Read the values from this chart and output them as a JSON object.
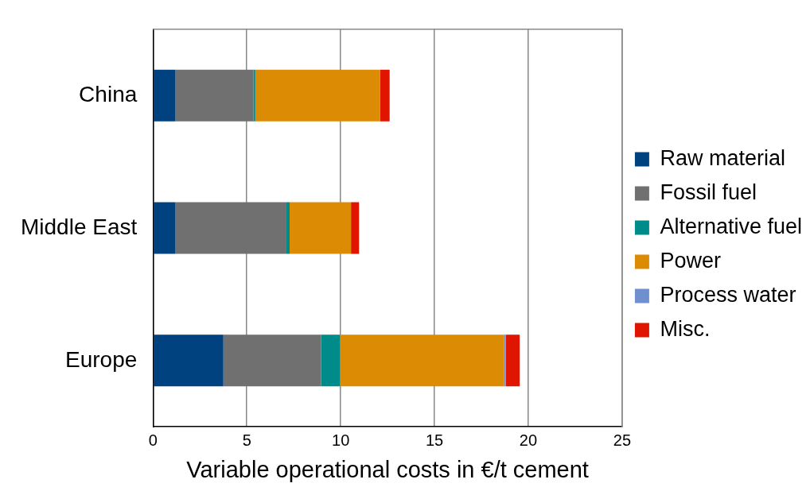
{
  "chart_data": {
    "type": "bar",
    "orientation": "horizontal",
    "stacked": true,
    "xlabel": "Variable operational costs in €/t cement",
    "categories": [
      "China",
      "Middle East",
      "Europe"
    ],
    "series": [
      {
        "name": "Raw material",
        "color": "#00427f",
        "values": [
          1.2,
          1.2,
          3.75
        ]
      },
      {
        "name": "Fossil fuel",
        "color": "#707070",
        "values": [
          4.15,
          5.91,
          5.2
        ]
      },
      {
        "name": "Alternative fuel",
        "color": "#008b8b",
        "values": [
          0.1,
          0.17,
          1.01
        ]
      },
      {
        "name": "Power",
        "color": "#dc8c04",
        "values": [
          6.66,
          3.27,
          8.76
        ]
      },
      {
        "name": "Process water",
        "color": "#6f8fcf",
        "values": [
          0,
          0,
          0.08
        ]
      },
      {
        "name": "Misc.",
        "color": "#e01500",
        "values": [
          0.5,
          0.43,
          0.74
        ]
      }
    ],
    "xlim": [
      0,
      25
    ],
    "xticks": [
      0,
      5,
      10,
      15,
      20,
      25
    ],
    "grid": "x",
    "legend": "right"
  }
}
